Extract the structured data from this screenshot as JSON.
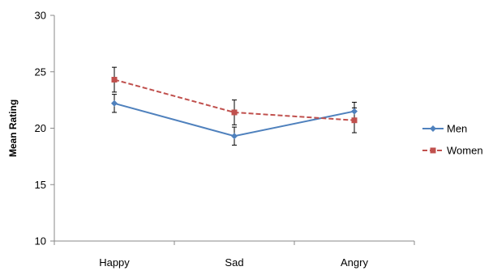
{
  "chart_data": {
    "type": "line",
    "title": "",
    "xlabel": "",
    "ylabel": "Mean Rating",
    "categories": [
      "Happy",
      "Sad",
      "Angry"
    ],
    "ylim": [
      10,
      30
    ],
    "yticks": [
      10,
      15,
      20,
      25,
      30
    ],
    "grid": false,
    "legend_position": "right",
    "series": [
      {
        "name": "Men",
        "values": [
          22.2,
          19.3,
          21.5
        ],
        "error": [
          0.8,
          0.8,
          0.8
        ],
        "color": "#4F81BD",
        "line_style": "solid",
        "marker": "diamond"
      },
      {
        "name": "Women",
        "values": [
          24.3,
          21.4,
          20.7
        ],
        "error": [
          1.1,
          1.1,
          1.1
        ],
        "color": "#C0504D",
        "line_style": "dashed",
        "marker": "square"
      }
    ]
  }
}
